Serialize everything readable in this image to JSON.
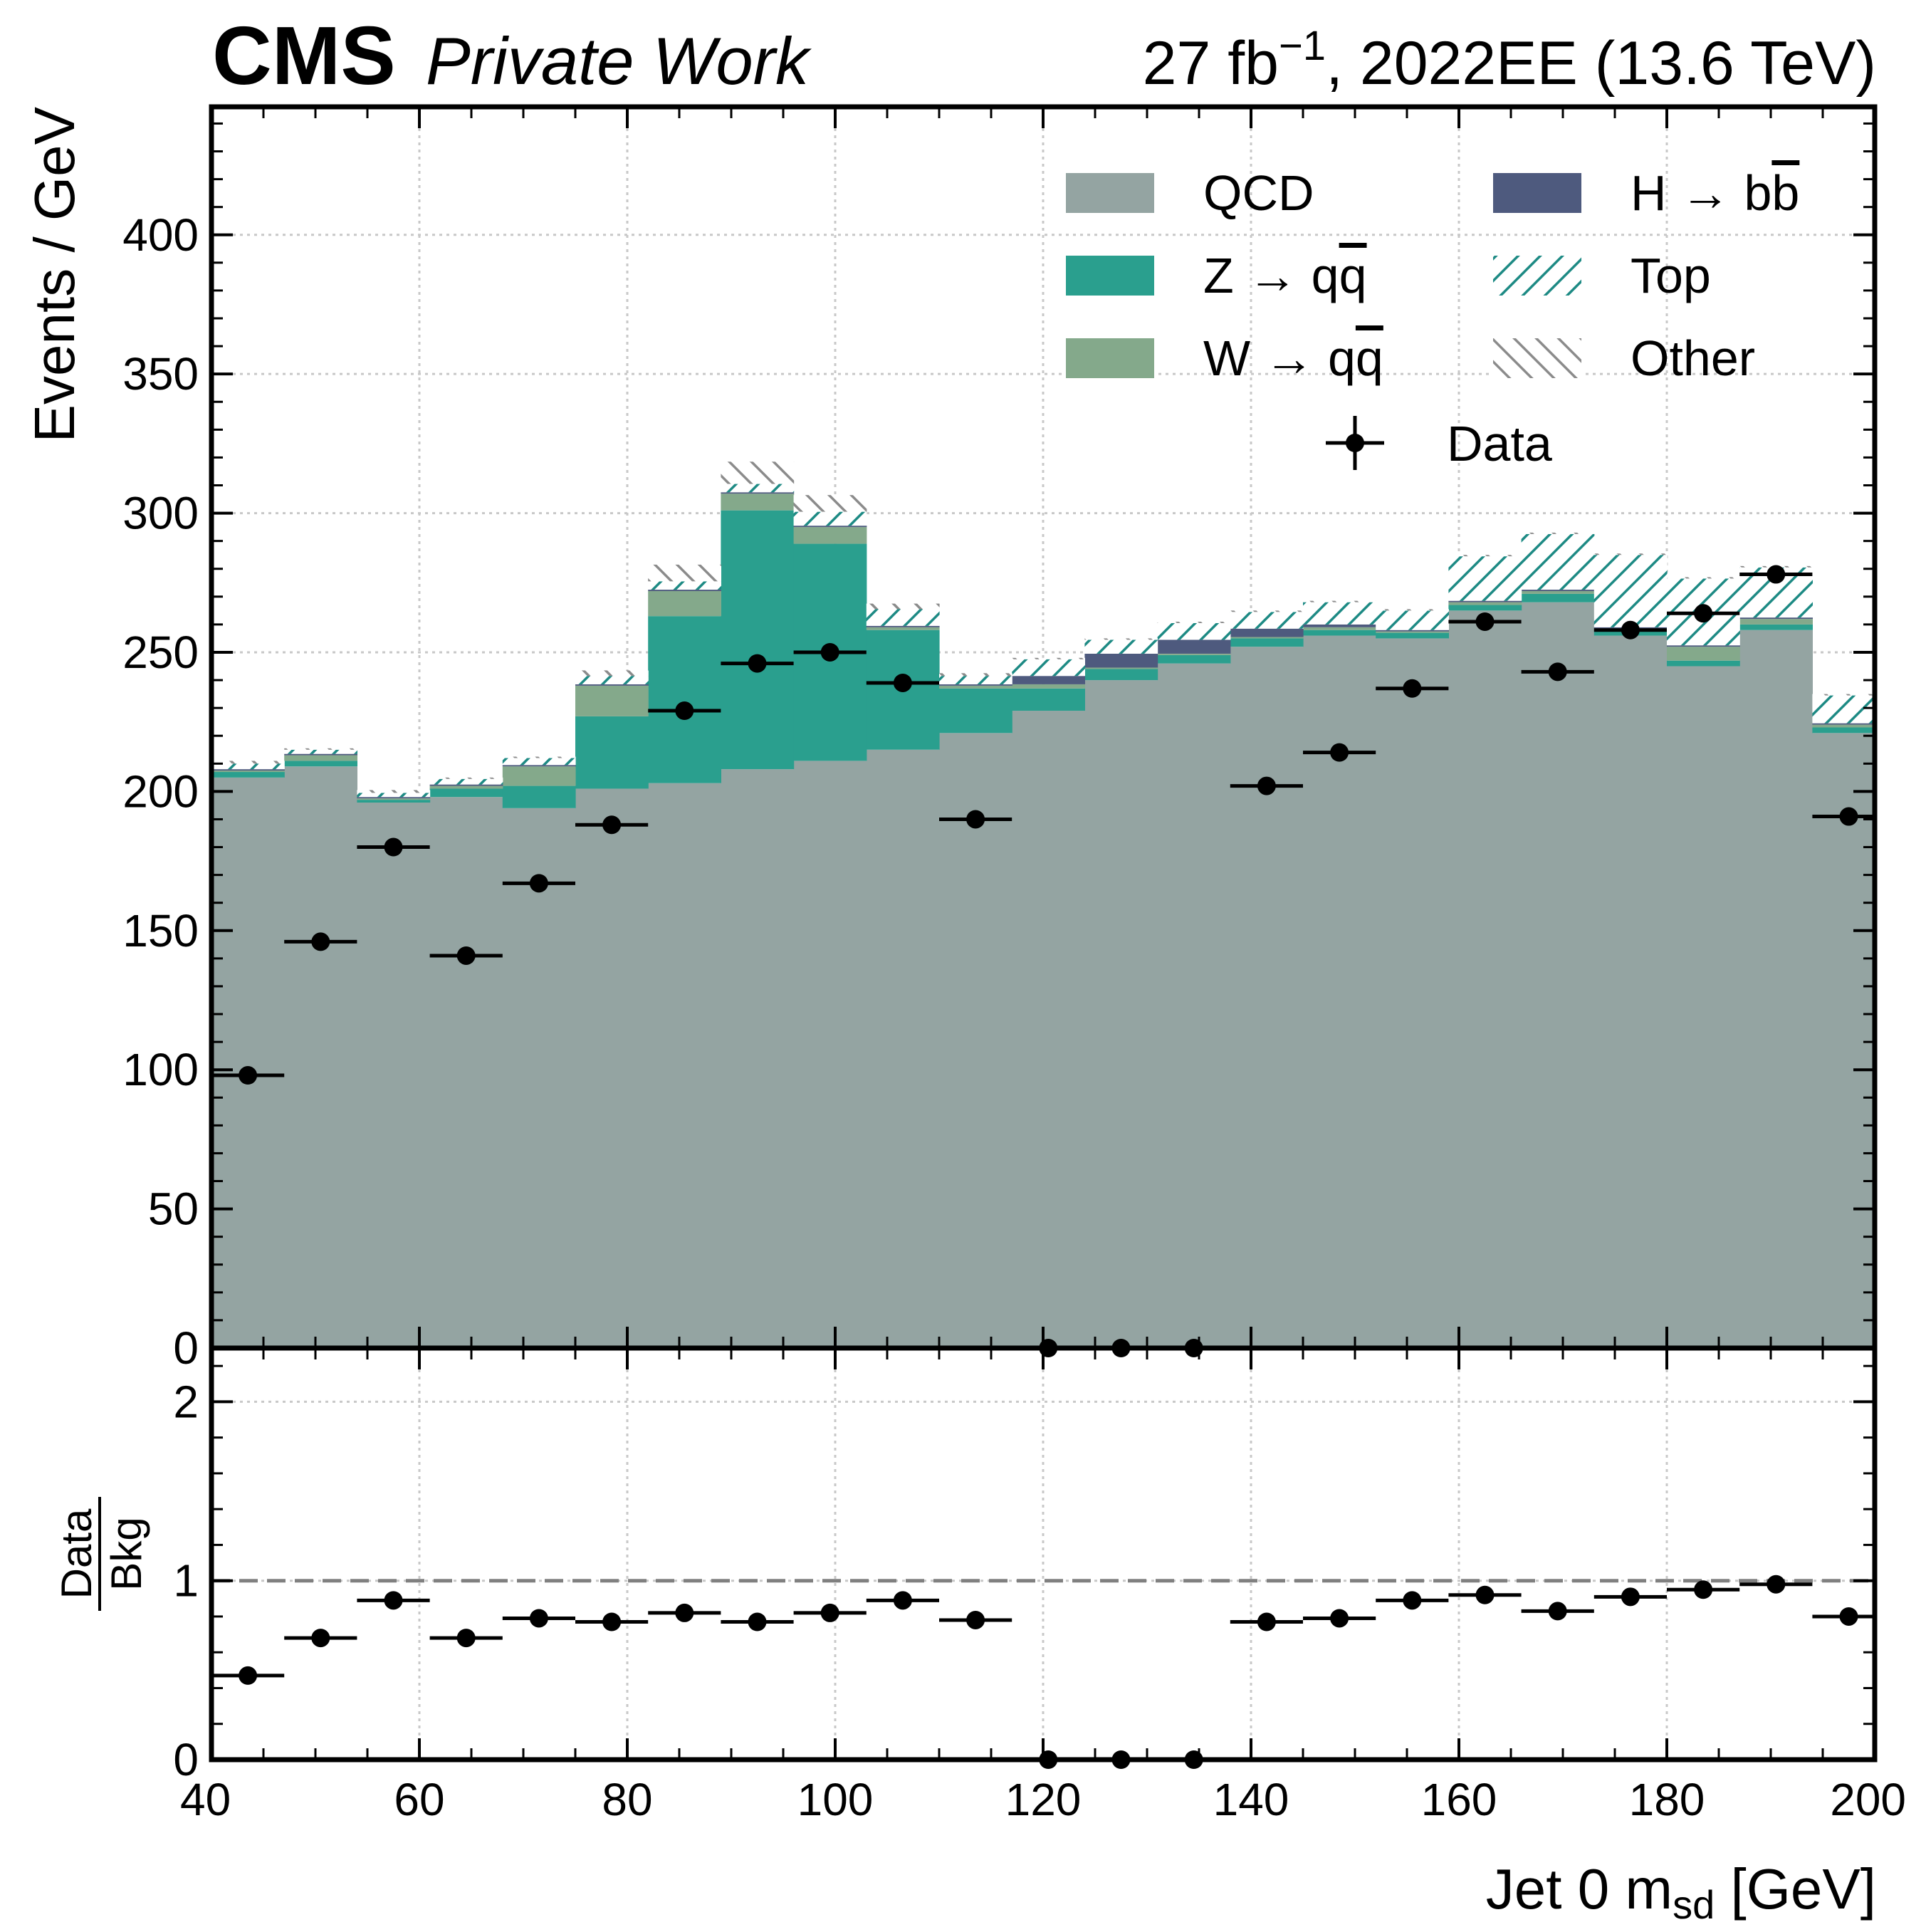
{
  "header": {
    "experiment": "CMS",
    "status": "Private Work",
    "lumi_prefix": "27 fb",
    "lumi_exponent": "−1",
    "lumi_suffix": ", 2022EE (13.6 TeV)"
  },
  "colors": {
    "QCD": "#94a4a2",
    "Zqq": "#2a9f8e",
    "Wqq": "#84a98b",
    "Hbb": "#4e5a7e",
    "Top": "#1d8a84",
    "Other": "#8b8b8b",
    "Data": "#000000",
    "grid": "#c8c8c8",
    "ratio_line": "#808080"
  },
  "chart_data": [
    {
      "type": "bar",
      "subtype": "stacked-histogram",
      "ylabel": "Events / GeV",
      "xlim": [
        40,
        200
      ],
      "ylim": [
        0,
        446
      ],
      "yticks": [
        0,
        50,
        100,
        150,
        200,
        250,
        300,
        350,
        400
      ],
      "grid": true,
      "legend_position": "top-right",
      "legend": {
        "QCD": "QCD",
        "Zqq_prefix": "Z → q",
        "Zqq_bar": "q",
        "Wqq_prefix": "W → q",
        "Wqq_bar": "q",
        "Hbb_prefix": "H → b",
        "Hbb_bar": "b",
        "Top": "Top",
        "Other": "Other",
        "Data": "Data"
      },
      "bin_edges": [
        40,
        47,
        54,
        61,
        68,
        75,
        82,
        89,
        96,
        103,
        110,
        117,
        124,
        131,
        138,
        145,
        152,
        159,
        166,
        173,
        180,
        187,
        194,
        201
      ],
      "series": [
        {
          "key": "QCD",
          "style": "fill",
          "values": [
            205,
            209,
            196,
            198,
            194,
            201,
            203,
            208,
            211,
            215,
            221,
            229,
            240,
            246,
            252,
            256,
            255,
            265,
            268,
            256,
            245,
            258,
            221
          ]
        },
        {
          "key": "Zqq",
          "style": "fill",
          "values": [
            2,
            2,
            1,
            3,
            8,
            26,
            60,
            93,
            78,
            43,
            16,
            8,
            4,
            3,
            3,
            2,
            2,
            2,
            3,
            2,
            2,
            2,
            2
          ]
        },
        {
          "key": "Wqq",
          "style": "fill",
          "values": [
            0.5,
            2,
            0.5,
            1,
            7,
            11,
            9,
            6,
            6,
            1,
            1,
            1.5,
            0.5,
            0.5,
            0.5,
            1,
            0.5,
            1,
            1,
            0.5,
            5,
            2,
            1
          ]
        },
        {
          "key": "Hbb",
          "style": "fill",
          "values": [
            0.5,
            0.5,
            0.5,
            0.5,
            0.5,
            0.5,
            0.5,
            0.5,
            0.5,
            0.5,
            0.5,
            3,
            5,
            5,
            3,
            1,
            0.5,
            0.5,
            0.5,
            0.5,
            0.5,
            0.5,
            0.5
          ]
        },
        {
          "key": "Top",
          "style": "hatch",
          "values": [
            2,
            1.5,
            1.5,
            2,
            2.5,
            3,
            3,
            3,
            5,
            6,
            3,
            6,
            5,
            6,
            6,
            8,
            7,
            16,
            20,
            26,
            24,
            18,
            10
          ]
        },
        {
          "key": "Other",
          "style": "hatch",
          "values": [
            1,
            0.5,
            1,
            0.5,
            0.5,
            2,
            6,
            8,
            6,
            2,
            1,
            0.5,
            0.5,
            0.5,
            0.5,
            0.5,
            0.5,
            0.5,
            0.5,
            0.5,
            0.5,
            0.5,
            0.5
          ]
        }
      ],
      "data_points": {
        "key": "Data",
        "x": [
          43.5,
          50.5,
          57.5,
          64.5,
          71.5,
          78.5,
          85.5,
          92.5,
          99.5,
          106.5,
          113.5,
          120.5,
          127.5,
          134.5,
          141.5,
          148.5,
          155.5,
          162.5,
          169.5,
          176.5,
          183.5,
          190.5,
          197.5
        ],
        "y": [
          98,
          146,
          180,
          141,
          167,
          188,
          229,
          246,
          250,
          239,
          190,
          0,
          0,
          0,
          202,
          214,
          237,
          261,
          243,
          258,
          264,
          278,
          191
        ]
      }
    },
    {
      "type": "scatter",
      "subtype": "ratio",
      "ylabel_numerator": "Data",
      "ylabel_denominator": "Bkg",
      "xlabel": "Jet 0 m",
      "xlabel_subscript": "sd",
      "xlabel_suffix": " [GeV]",
      "xlim": [
        40,
        200
      ],
      "ylim": [
        0,
        2.3
      ],
      "yticks": [
        0,
        1,
        2
      ],
      "xticks": [
        40,
        60,
        80,
        100,
        120,
        140,
        160,
        180,
        200
      ],
      "reference_line": 1,
      "grid": true,
      "x": [
        43.5,
        50.5,
        57.5,
        64.5,
        71.5,
        78.5,
        85.5,
        92.5,
        99.5,
        106.5,
        113.5,
        120.5,
        127.5,
        134.5,
        141.5,
        148.5,
        155.5,
        162.5,
        169.5,
        176.5,
        183.5,
        190.5,
        197.5
      ],
      "y": [
        0.47,
        0.68,
        0.89,
        0.68,
        0.79,
        0.77,
        0.82,
        0.77,
        0.82,
        0.89,
        0.78,
        0,
        0,
        0,
        0.77,
        0.79,
        0.89,
        0.92,
        0.83,
        0.91,
        0.95,
        0.98,
        0.8
      ]
    }
  ]
}
